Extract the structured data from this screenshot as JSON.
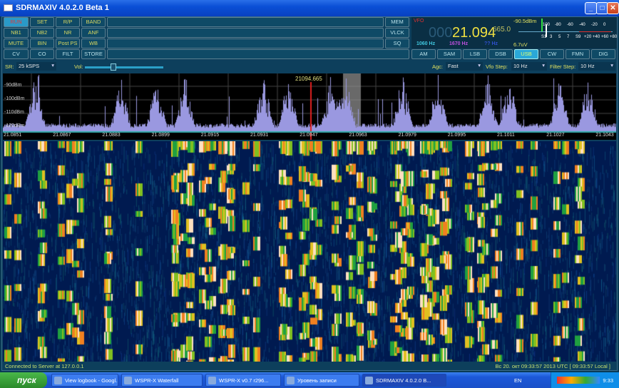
{
  "window": {
    "title": "SDRMAXIV 4.0.2.0 Beta 1",
    "minimize": "_",
    "maximize": "□",
    "close": "✕"
  },
  "toolbar": {
    "rows": [
      [
        "RUN",
        "SET",
        "R/P",
        "BAND"
      ],
      [
        "NB1",
        "NB2",
        "NR",
        "ANF"
      ],
      [
        "MUTE",
        "BIN",
        "Post PS",
        "WB"
      ],
      [
        "CV",
        "CO",
        "FILT",
        "STORE"
      ]
    ],
    "right": [
      "MEM",
      "VLCK",
      "SQ"
    ]
  },
  "vfo": {
    "label": "VFO",
    "dim_digits": "000",
    "freq": "21.094",
    "sub": "665.0",
    "hz1": "1060 Hz",
    "hz2": "1670 Hz",
    "hz3": "?? Hz"
  },
  "smeter": {
    "dbm": "-90.5dBm",
    "uv": "6.7uV",
    "top_scale": [
      "100",
      "-80",
      "-60",
      "-40",
      "-20",
      "0"
    ],
    "bottom_scale": [
      "S1",
      "3",
      "5",
      "7",
      "S9",
      "+20",
      "+40",
      "+60",
      "+80"
    ]
  },
  "modes": [
    "AM",
    "SAM",
    "LSB",
    "DSB",
    "USB",
    "CW",
    "FMN",
    "DIG"
  ],
  "active_mode": "USB",
  "controls": {
    "sr_label": "SR:",
    "sr_value": "25 kSPS",
    "vol_label": "Vol:",
    "vol_level": 0.2,
    "agc_label": "Agc:",
    "agc_value": "Fast",
    "vfo_step_label": "Vfo Step:",
    "vfo_step_value": "10 Hz",
    "filter_step_label": "Filter Step:",
    "filter_step_value": "10 Hz"
  },
  "spectrum": {
    "marker": "21094.665",
    "db_labels": [
      "-90dBm",
      "-100dBm",
      "-110dBm",
      "-120dBm"
    ],
    "freq_labels": [
      "21.0851",
      "21.0867",
      "21.0883",
      "21.0899",
      "21.0915",
      "21.0931",
      "21.0947",
      "21.0963",
      "21.0979",
      "21.0995",
      "21.1011",
      "21.1027",
      "21.1043"
    ],
    "trace_color": "#9a98e0"
  },
  "status": {
    "left": "Connected to Server at 127.0.0.1",
    "right": "Вс 20. окт 09:33:57 2013 UTC [ 09:33:57 Local ]"
  },
  "taskbar": {
    "start": "пуск",
    "tasks": [
      "View logbook - Googl...",
      "WSPR-X Waterfall",
      "WSPR-X  v0.7  r296...",
      "Уровень записи",
      "SDRMAXIV 4.0.2.0 B..."
    ],
    "lang": "EN",
    "clock": "9:33"
  }
}
